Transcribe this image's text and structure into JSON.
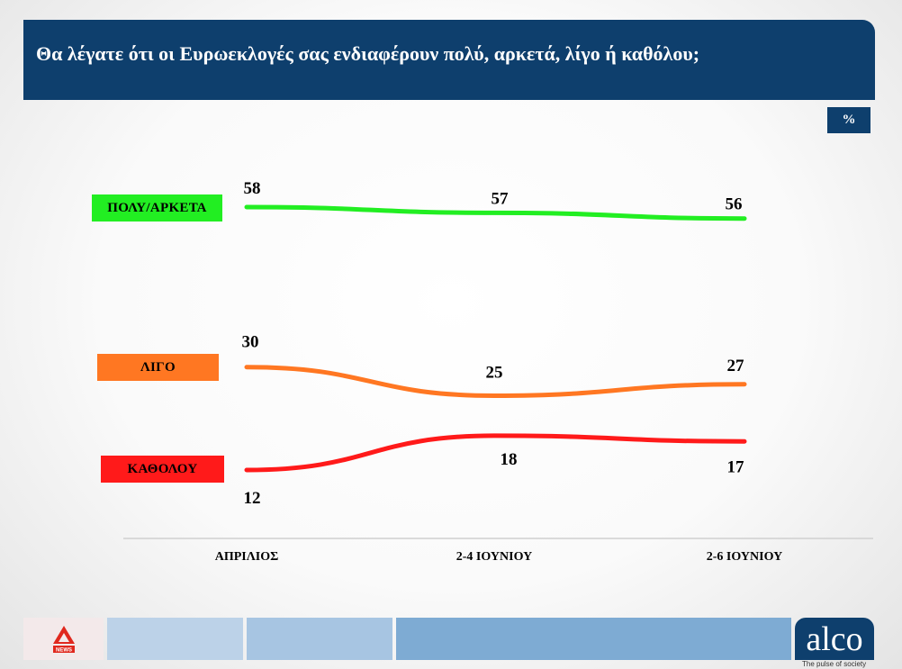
{
  "header": {
    "title": "Θα λέγατε ότι οι Ευρωεκλογές σας ενδιαφέρουν πολύ, αρκετά, λίγο ή καθόλου;"
  },
  "unit": "%",
  "chart_data": {
    "type": "line",
    "title": "Θα λέγατε ότι οι Ευρωεκλογές σας ενδιαφέρουν πολύ, αρκετά, λίγο ή καθόλου;",
    "categories": [
      "ΑΠΡΙΛΙΟΣ",
      "2-4 ΙΟΥΝΙΟΥ",
      "2-6 ΙΟΥΝΙΟΥ"
    ],
    "series": [
      {
        "name": "ΠΟΛΥ/ΑΡΚΕΤΑ",
        "values": [
          58,
          57,
          56
        ],
        "color": "#22ee22"
      },
      {
        "name": "ΛΙΓΟ",
        "values": [
          30,
          25,
          27
        ],
        "color": "#ff7722"
      },
      {
        "name": "ΚΑΘΟΛΟΥ",
        "values": [
          12,
          18,
          17
        ],
        "color": "#ff1a1a"
      }
    ],
    "grid": false,
    "legend": "left"
  },
  "footer": {
    "brand": "alco",
    "tagline": "The pulse of society",
    "left_logo_text": "NEWS",
    "accent_color": "#0e3f6d",
    "segment_colors": [
      "#bcd2e8",
      "#a7c5e2",
      "#7eabd3"
    ]
  }
}
